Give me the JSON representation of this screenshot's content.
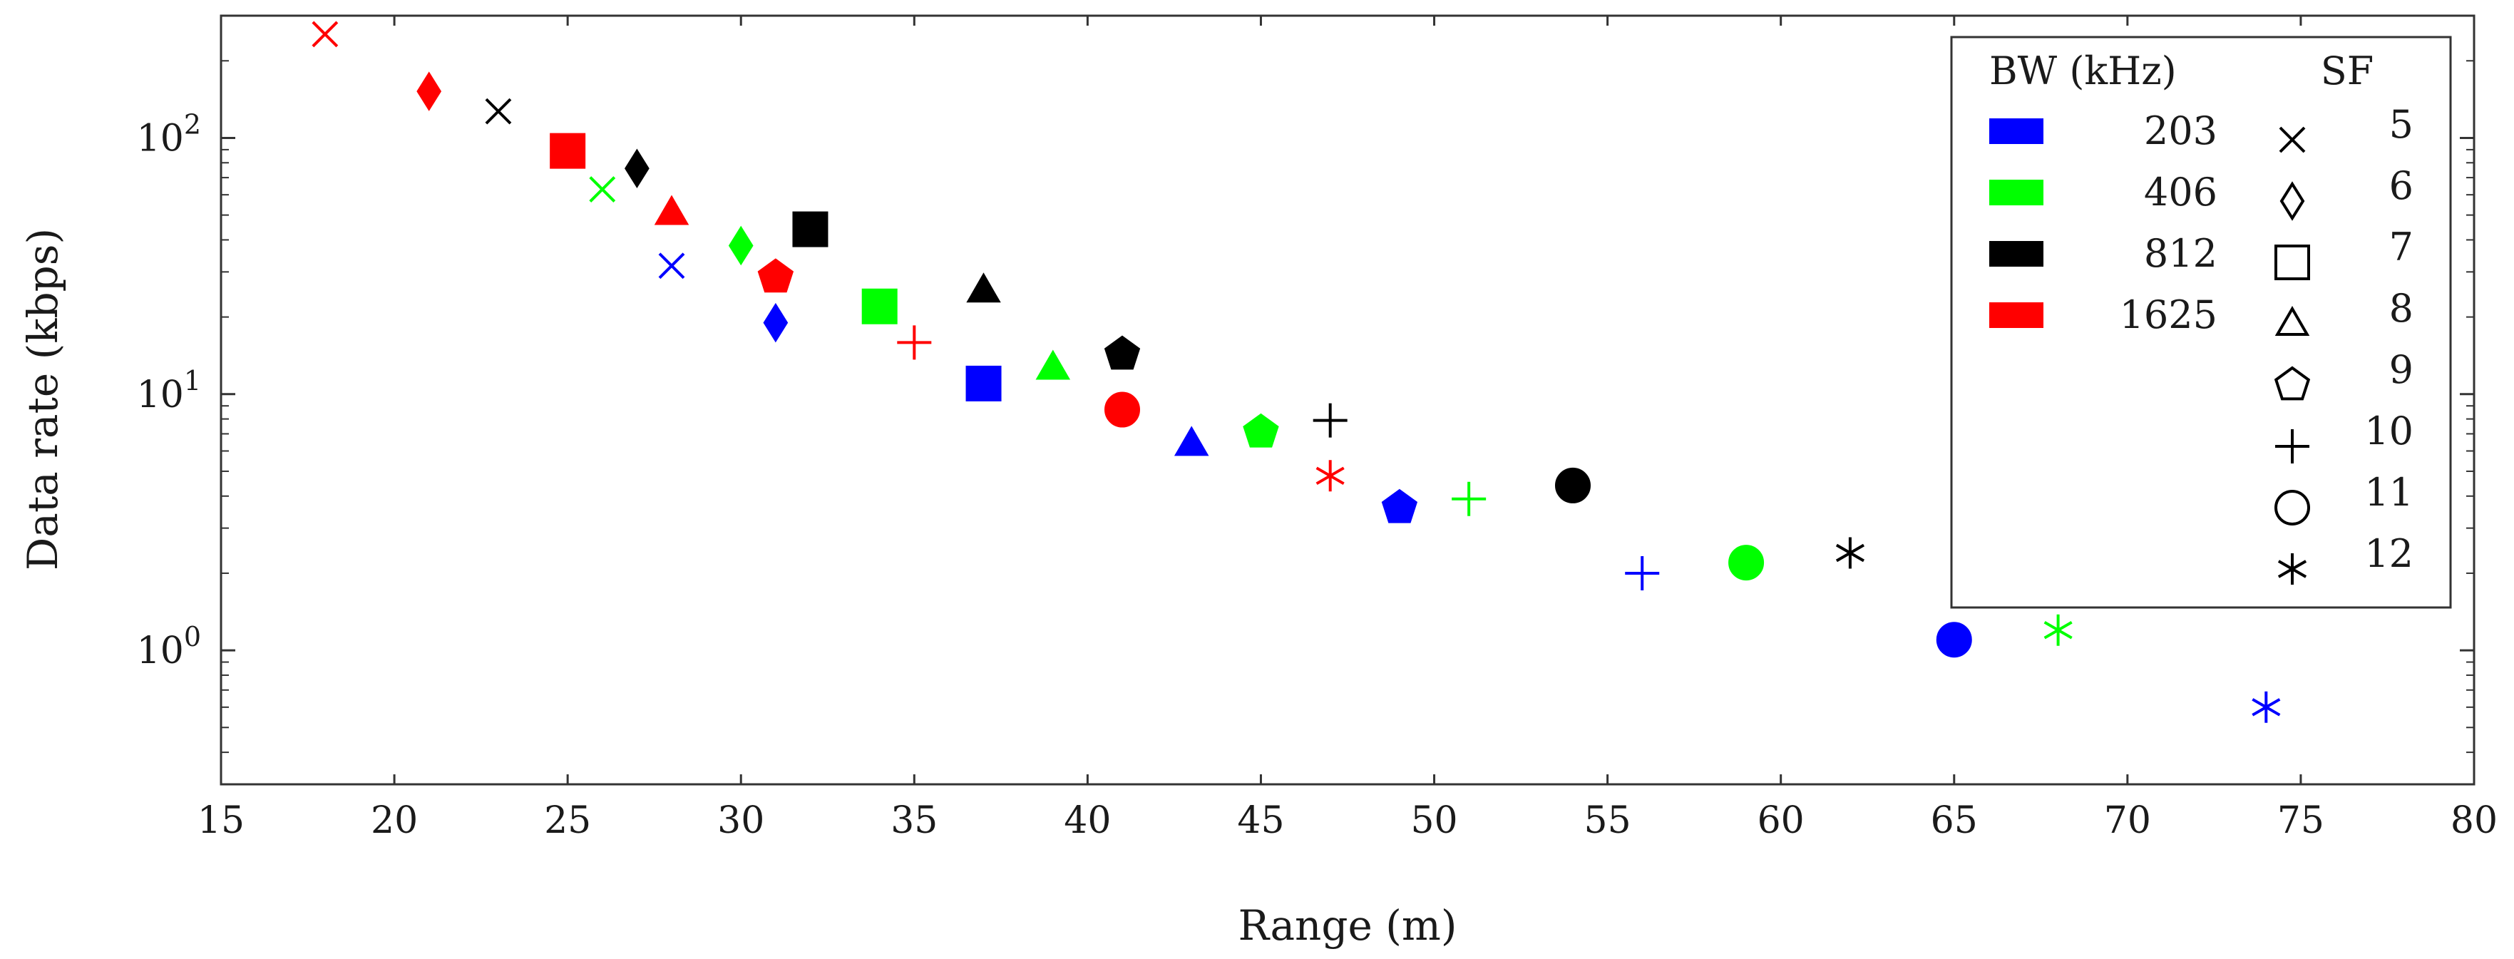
{
  "chart_data": {
    "type": "scatter",
    "title": "",
    "xlabel": "Range (m)",
    "ylabel": "Data rate (kbps)",
    "xlim": [
      15,
      80
    ],
    "ylim": [
      0.3,
      300
    ],
    "yscale": "log",
    "x_ticks": [
      "15",
      "20",
      "25",
      "30",
      "35",
      "40",
      "45",
      "50",
      "55",
      "60",
      "65",
      "70",
      "75",
      "80"
    ],
    "y_ticks": [
      {
        "base": "10",
        "exp": "0"
      },
      {
        "base": "10",
        "exp": "1"
      },
      {
        "base": "10",
        "exp": "2"
      }
    ],
    "legend_placement": "top-right",
    "legend": {
      "bw_title": "BW (kHz)",
      "sf_title": "SF",
      "bw": [
        {
          "label": "203",
          "color": "#0000ff"
        },
        {
          "label": "406",
          "color": "#00ff00"
        },
        {
          "label": "812",
          "color": "#000000"
        },
        {
          "label": "1625",
          "color": "#ff0000"
        }
      ],
      "sf": [
        {
          "label": "5",
          "marker": "x"
        },
        {
          "label": "6",
          "marker": "diamond"
        },
        {
          "label": "7",
          "marker": "square"
        },
        {
          "label": "8",
          "marker": "triangle"
        },
        {
          "label": "9",
          "marker": "pentagon"
        },
        {
          "label": "10",
          "marker": "plus"
        },
        {
          "label": "11",
          "marker": "circle"
        },
        {
          "label": "12",
          "marker": "star"
        }
      ]
    },
    "series": [
      {
        "name": "203",
        "color": "#0000ff",
        "points": [
          {
            "sf": 5,
            "x": 28,
            "y": 31.7
          },
          {
            "sf": 6,
            "x": 31,
            "y": 19
          },
          {
            "sf": 7,
            "x": 37,
            "y": 11
          },
          {
            "sf": 8,
            "x": 43,
            "y": 6.4
          },
          {
            "sf": 9,
            "x": 49,
            "y": 3.6
          },
          {
            "sf": 10,
            "x": 56,
            "y": 2.0
          },
          {
            "sf": 11,
            "x": 65,
            "y": 1.1
          },
          {
            "sf": 12,
            "x": 74,
            "y": 0.6
          }
        ]
      },
      {
        "name": "406",
        "color": "#00ff00",
        "points": [
          {
            "sf": 5,
            "x": 26,
            "y": 63
          },
          {
            "sf": 6,
            "x": 30,
            "y": 38
          },
          {
            "sf": 7,
            "x": 34,
            "y": 22
          },
          {
            "sf": 8,
            "x": 39,
            "y": 12.7
          },
          {
            "sf": 9,
            "x": 45,
            "y": 7.1
          },
          {
            "sf": 10,
            "x": 51,
            "y": 3.9
          },
          {
            "sf": 11,
            "x": 59,
            "y": 2.2
          },
          {
            "sf": 12,
            "x": 68,
            "y": 1.2
          }
        ]
      },
      {
        "name": "812",
        "color": "#000000",
        "points": [
          {
            "sf": 5,
            "x": 23,
            "y": 127
          },
          {
            "sf": 6,
            "x": 27,
            "y": 76
          },
          {
            "sf": 7,
            "x": 32,
            "y": 44
          },
          {
            "sf": 8,
            "x": 37,
            "y": 25.4
          },
          {
            "sf": 9,
            "x": 41,
            "y": 14.3
          },
          {
            "sf": 10,
            "x": 47,
            "y": 7.9
          },
          {
            "sf": 11,
            "x": 54,
            "y": 4.4
          },
          {
            "sf": 12,
            "x": 62,
            "y": 2.4
          }
        ]
      },
      {
        "name": "1625",
        "color": "#ff0000",
        "points": [
          {
            "sf": 5,
            "x": 18,
            "y": 254
          },
          {
            "sf": 6,
            "x": 21,
            "y": 152
          },
          {
            "sf": 7,
            "x": 25,
            "y": 89
          },
          {
            "sf": 8,
            "x": 28,
            "y": 51
          },
          {
            "sf": 9,
            "x": 31,
            "y": 28.6
          },
          {
            "sf": 10,
            "x": 35,
            "y": 15.9
          },
          {
            "sf": 11,
            "x": 41,
            "y": 8.7
          },
          {
            "sf": 12,
            "x": 47,
            "y": 4.8
          }
        ]
      }
    ]
  }
}
